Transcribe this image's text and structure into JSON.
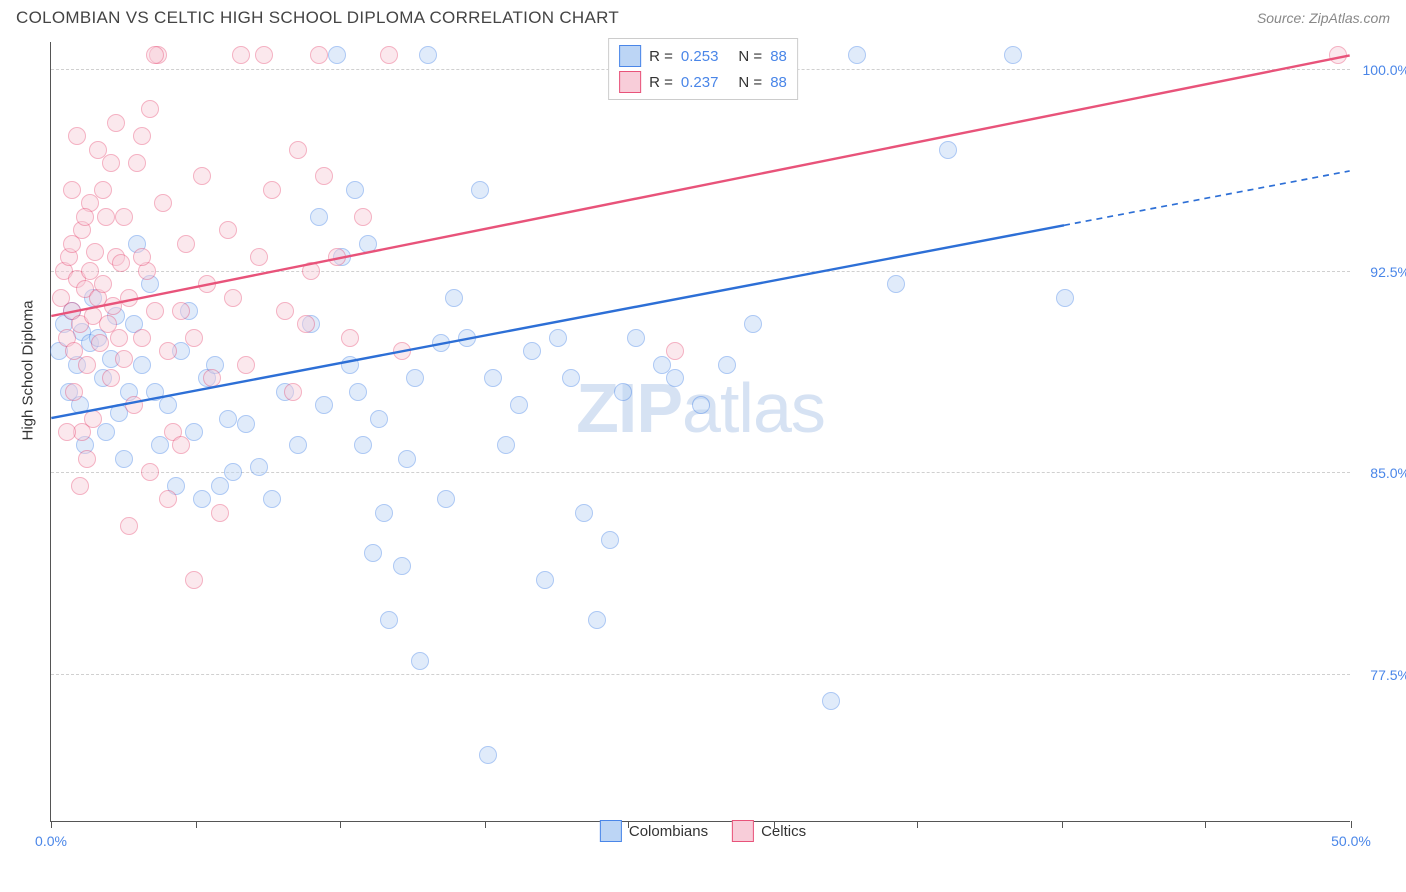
{
  "header": {
    "title": "COLOMBIAN VS CELTIC HIGH SCHOOL DIPLOMA CORRELATION CHART",
    "source": "Source: ZipAtlas.com"
  },
  "watermark": {
    "prefix": "ZIP",
    "suffix": "atlas"
  },
  "chart": {
    "type": "scatter",
    "y_axis_title": "High School Diploma",
    "xlim": [
      0,
      50
    ],
    "ylim": [
      72,
      101
    ],
    "x_ticks": [
      0,
      5.56,
      11.1,
      16.7,
      22.2,
      27.8,
      33.3,
      38.9,
      44.4,
      50
    ],
    "x_tick_labels": {
      "0": "0.0%",
      "50": "50.0%"
    },
    "y_gridlines": [
      77.5,
      85.0,
      92.5,
      100.0
    ],
    "y_tick_labels": [
      "77.5%",
      "85.0%",
      "92.5%",
      "100.0%"
    ],
    "background_color": "#ffffff",
    "grid_color": "#d0d0d0",
    "marker_radius": 9,
    "marker_opacity": 0.45,
    "series": [
      {
        "name": "Colombians",
        "color_fill": "#bcd5f5",
        "color_stroke": "#4a86e8",
        "r_value": "0.253",
        "n_value": "88",
        "regression": {
          "x1": 0,
          "y1": 87.0,
          "x2": 50,
          "y2": 96.2,
          "solid_until_x": 39,
          "color": "#2d6fd6",
          "width": 2.4
        },
        "points": [
          [
            0.3,
            89.5
          ],
          [
            0.5,
            90.5
          ],
          [
            0.7,
            88.0
          ],
          [
            0.8,
            91.0
          ],
          [
            1.0,
            89.0
          ],
          [
            1.1,
            87.5
          ],
          [
            1.2,
            90.2
          ],
          [
            1.3,
            86.0
          ],
          [
            1.5,
            89.8
          ],
          [
            1.6,
            91.5
          ],
          [
            1.8,
            90.0
          ],
          [
            2.0,
            88.5
          ],
          [
            2.1,
            86.5
          ],
          [
            2.3,
            89.2
          ],
          [
            2.5,
            90.8
          ],
          [
            2.6,
            87.2
          ],
          [
            2.8,
            85.5
          ],
          [
            3.0,
            88.0
          ],
          [
            3.2,
            90.5
          ],
          [
            3.5,
            89.0
          ],
          [
            3.3,
            93.5
          ],
          [
            3.8,
            92.0
          ],
          [
            4.0,
            88.0
          ],
          [
            4.2,
            86.0
          ],
          [
            4.5,
            87.5
          ],
          [
            4.8,
            84.5
          ],
          [
            5.0,
            89.5
          ],
          [
            5.3,
            91.0
          ],
          [
            5.5,
            86.5
          ],
          [
            5.8,
            84.0
          ],
          [
            6.0,
            88.5
          ],
          [
            6.3,
            89.0
          ],
          [
            6.5,
            84.5
          ],
          [
            6.8,
            87.0
          ],
          [
            7.0,
            85.0
          ],
          [
            7.5,
            86.8
          ],
          [
            8.0,
            85.2
          ],
          [
            8.5,
            84.0
          ],
          [
            9.0,
            88.0
          ],
          [
            9.5,
            86.0
          ],
          [
            10.0,
            90.5
          ],
          [
            10.3,
            94.5
          ],
          [
            10.5,
            87.5
          ],
          [
            11.0,
            100.5
          ],
          [
            11.2,
            93.0
          ],
          [
            11.5,
            89.0
          ],
          [
            11.7,
            95.5
          ],
          [
            11.8,
            88.0
          ],
          [
            12.0,
            86.0
          ],
          [
            12.2,
            93.5
          ],
          [
            12.4,
            82.0
          ],
          [
            12.6,
            87.0
          ],
          [
            12.8,
            83.5
          ],
          [
            13.0,
            79.5
          ],
          [
            13.5,
            81.5
          ],
          [
            13.7,
            85.5
          ],
          [
            14.0,
            88.5
          ],
          [
            14.2,
            78.0
          ],
          [
            14.5,
            100.5
          ],
          [
            15.0,
            89.8
          ],
          [
            15.2,
            84.0
          ],
          [
            15.5,
            91.5
          ],
          [
            16.0,
            90.0
          ],
          [
            16.5,
            95.5
          ],
          [
            16.8,
            74.5
          ],
          [
            17.0,
            88.5
          ],
          [
            17.5,
            86.0
          ],
          [
            18.0,
            87.5
          ],
          [
            18.5,
            89.5
          ],
          [
            19.0,
            81.0
          ],
          [
            19.5,
            90.0
          ],
          [
            20.0,
            88.5
          ],
          [
            20.5,
            83.5
          ],
          [
            21.0,
            79.5
          ],
          [
            21.5,
            82.5
          ],
          [
            22.0,
            88.0
          ],
          [
            22.5,
            90.0
          ],
          [
            23.5,
            89.0
          ],
          [
            24.0,
            88.5
          ],
          [
            25.0,
            87.5
          ],
          [
            26.0,
            89.0
          ],
          [
            27.0,
            90.5
          ],
          [
            30.0,
            76.5
          ],
          [
            31.0,
            100.5
          ],
          [
            32.5,
            92.0
          ],
          [
            34.5,
            97.0
          ],
          [
            37.0,
            100.5
          ],
          [
            39.0,
            91.5
          ]
        ]
      },
      {
        "name": "Celtics",
        "color_fill": "#f8cdd9",
        "color_stroke": "#e8537a",
        "r_value": "0.237",
        "n_value": "88",
        "regression": {
          "x1": 0,
          "y1": 90.8,
          "x2": 50,
          "y2": 100.5,
          "solid_until_x": 50,
          "color": "#e8537a",
          "width": 2.4
        },
        "points": [
          [
            0.4,
            91.5
          ],
          [
            0.5,
            92.5
          ],
          [
            0.6,
            90.0
          ],
          [
            0.7,
            93.0
          ],
          [
            0.8,
            91.0
          ],
          [
            0.9,
            89.5
          ],
          [
            1.0,
            92.2
          ],
          [
            1.1,
            90.5
          ],
          [
            1.2,
            94.0
          ],
          [
            1.3,
            91.8
          ],
          [
            1.4,
            89.0
          ],
          [
            1.5,
            92.5
          ],
          [
            1.6,
            90.8
          ],
          [
            1.7,
            93.2
          ],
          [
            1.8,
            91.5
          ],
          [
            1.9,
            89.8
          ],
          [
            2.0,
            92.0
          ],
          [
            2.1,
            94.5
          ],
          [
            2.2,
            90.5
          ],
          [
            2.3,
            88.5
          ],
          [
            2.4,
            91.2
          ],
          [
            2.5,
            93.0
          ],
          [
            2.6,
            90.0
          ],
          [
            2.7,
            92.8
          ],
          [
            2.8,
            89.2
          ],
          [
            3.0,
            91.5
          ],
          [
            3.2,
            87.5
          ],
          [
            3.3,
            96.5
          ],
          [
            3.5,
            90.0
          ],
          [
            3.7,
            92.5
          ],
          [
            3.8,
            98.5
          ],
          [
            4.0,
            91.0
          ],
          [
            4.1,
            100.5
          ],
          [
            4.3,
            95.0
          ],
          [
            4.5,
            89.5
          ],
          [
            4.7,
            86.5
          ],
          [
            5.0,
            91.0
          ],
          [
            5.2,
            93.5
          ],
          [
            5.5,
            90.0
          ],
          [
            5.8,
            96.0
          ],
          [
            6.0,
            92.0
          ],
          [
            6.2,
            88.5
          ],
          [
            6.5,
            83.5
          ],
          [
            6.8,
            94.0
          ],
          [
            7.0,
            91.5
          ],
          [
            7.3,
            100.5
          ],
          [
            7.5,
            89.0
          ],
          [
            8.0,
            93.0
          ],
          [
            8.2,
            100.5
          ],
          [
            8.5,
            95.5
          ],
          [
            9.0,
            91.0
          ],
          [
            9.3,
            88.0
          ],
          [
            9.5,
            97.0
          ],
          [
            9.8,
            90.5
          ],
          [
            10.0,
            92.5
          ],
          [
            10.3,
            100.5
          ],
          [
            10.5,
            96.0
          ],
          [
            11.0,
            93.0
          ],
          [
            11.5,
            90.0
          ],
          [
            12.0,
            94.5
          ],
          [
            13.0,
            100.5
          ],
          [
            13.5,
            89.5
          ],
          [
            3.0,
            83.0
          ],
          [
            3.5,
            97.5
          ],
          [
            4.0,
            100.5
          ],
          [
            1.8,
            97.0
          ],
          [
            2.0,
            95.5
          ],
          [
            2.5,
            98.0
          ],
          [
            1.5,
            95.0
          ],
          [
            0.8,
            95.5
          ],
          [
            1.0,
            97.5
          ],
          [
            2.3,
            96.5
          ],
          [
            4.5,
            84.0
          ],
          [
            5.0,
            86.0
          ],
          [
            5.5,
            81.0
          ],
          [
            3.8,
            85.0
          ],
          [
            24.0,
            89.5
          ],
          [
            1.2,
            86.5
          ],
          [
            1.6,
            87.0
          ],
          [
            0.9,
            88.0
          ],
          [
            1.1,
            84.5
          ],
          [
            1.4,
            85.5
          ],
          [
            0.6,
            86.5
          ],
          [
            0.8,
            93.5
          ],
          [
            1.3,
            94.5
          ],
          [
            2.8,
            94.5
          ],
          [
            3.5,
            93.0
          ],
          [
            49.5,
            100.5
          ]
        ]
      }
    ],
    "legend_bottom": [
      "Colombians",
      "Celtics"
    ]
  }
}
